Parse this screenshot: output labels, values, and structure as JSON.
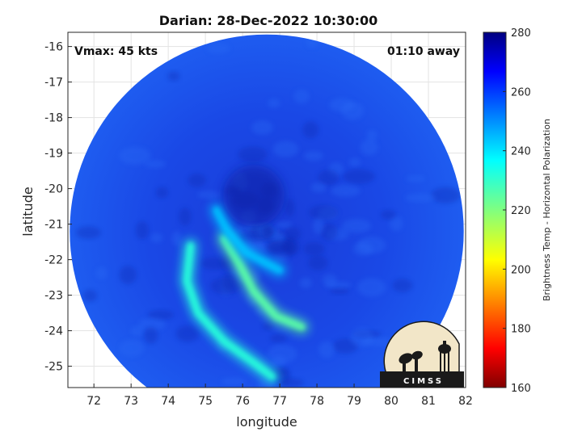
{
  "chart_data": {
    "type": "heatmap",
    "title": "Darian: 28-Dec-2022 10:30:00",
    "xlabel": "longitude",
    "ylabel": "latitude",
    "xlim": [
      71.3,
      82.0
    ],
    "ylim": [
      -25.6,
      -15.6
    ],
    "xticks": [
      72,
      73,
      74,
      75,
      76,
      77,
      78,
      79,
      80,
      81,
      82
    ],
    "yticks": [
      -16,
      -17,
      -18,
      -19,
      -20,
      -21,
      -22,
      -23,
      -24,
      -25
    ],
    "grid": true,
    "swath": {
      "center_lon": 76.65,
      "center_lat": -21.2,
      "radius_deg": 5.3
    },
    "storm_center": {
      "lon": 76.3,
      "lat": -20.2
    },
    "colorbar": {
      "label": "Brightness Temp - Horizontal Polarization",
      "min": 160,
      "max": 280,
      "ticks": [
        160,
        180,
        200,
        220,
        240,
        260,
        280
      ],
      "colormap": "jet"
    },
    "features": [
      {
        "type": "rainband",
        "desc": "warm band",
        "points": [
          [
            74.6,
            -21.6
          ],
          [
            74.5,
            -22.6
          ],
          [
            74.8,
            -23.5
          ],
          [
            75.5,
            -24.3
          ],
          [
            76.3,
            -24.9
          ],
          [
            76.8,
            -25.3
          ]
        ],
        "value": 232
      },
      {
        "type": "rainband",
        "desc": "inner band",
        "points": [
          [
            75.5,
            -21.4
          ],
          [
            75.9,
            -22.1
          ],
          [
            76.3,
            -22.9
          ],
          [
            76.9,
            -23.6
          ],
          [
            77.6,
            -23.9
          ]
        ],
        "value": 225
      },
      {
        "type": "rainband",
        "desc": "outer band",
        "points": [
          [
            75.3,
            -20.6
          ],
          [
            75.6,
            -21.2
          ],
          [
            76.1,
            -21.8
          ],
          [
            77.0,
            -22.3
          ]
        ],
        "value": 244
      }
    ],
    "annotations": {
      "vmax": "Vmax: 45 kts",
      "time_away": "01:10 away"
    }
  },
  "logo": {
    "text": "CIMSS"
  },
  "colors": {
    "background_field": "#1a48e6",
    "swath_edge": "#1432c8",
    "logo_dark": "#1a1a1a",
    "logo_sky": "#f2e6c8"
  }
}
